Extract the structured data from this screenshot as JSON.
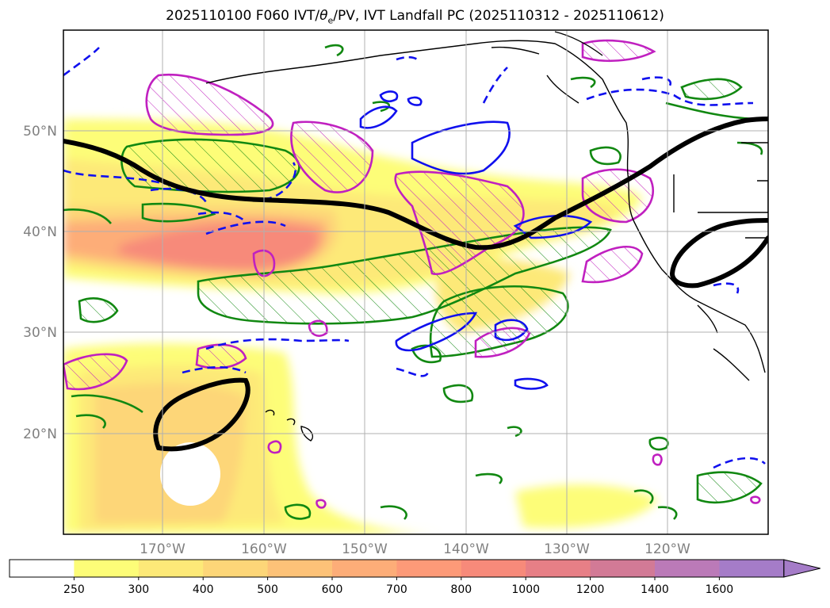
{
  "title_prefix": "2025110100 F060 IVT/",
  "title_theta": "θ",
  "title_sub": "e",
  "title_suffix": "/PV, IVT Landfall PC (2025110312 - 2025110612)",
  "chart_data": {
    "type": "heatmap",
    "title": "2025110100 F060 IVT/θe/PV, IVT Landfall PC (2025110312 - 2025110612)",
    "lat_ticks": [
      "50°N",
      "40°N",
      "30°N",
      "20°N"
    ],
    "lat_values": [
      50,
      40,
      30,
      20
    ],
    "lon_ticks": [
      "170°W",
      "160°W",
      "150°W",
      "140°W",
      "130°W",
      "120°W"
    ],
    "lon_values": [
      -170,
      -160,
      -150,
      -140,
      -130,
      -120
    ],
    "extent": {
      "lon": [
        -180,
        -110
      ],
      "lat": [
        10,
        60
      ]
    },
    "grid": true,
    "colorbar": {
      "levels": [
        250,
        300,
        400,
        500,
        600,
        700,
        800,
        1000,
        1200,
        1400,
        1600
      ],
      "labels": [
        "250",
        "300",
        "400",
        "500",
        "600",
        "700",
        "800",
        "1000",
        "1200",
        "1400",
        "1600"
      ],
      "colors": [
        "#ffffff",
        "#fdfd78",
        "#fde978",
        "#fdd678",
        "#fdc278",
        "#fdad78",
        "#fd9a78",
        "#f78a7a",
        "#e77f86",
        "#d27a96",
        "#bb7ab8",
        "#a57cc8"
      ],
      "extend": "max"
    },
    "features": {
      "ivt_shading": "IVT",
      "pv_contours": "magenta hatched",
      "theta_e": "green hatched",
      "landfall_pc": "black thick",
      "blue": "blue solid/dashed"
    }
  }
}
